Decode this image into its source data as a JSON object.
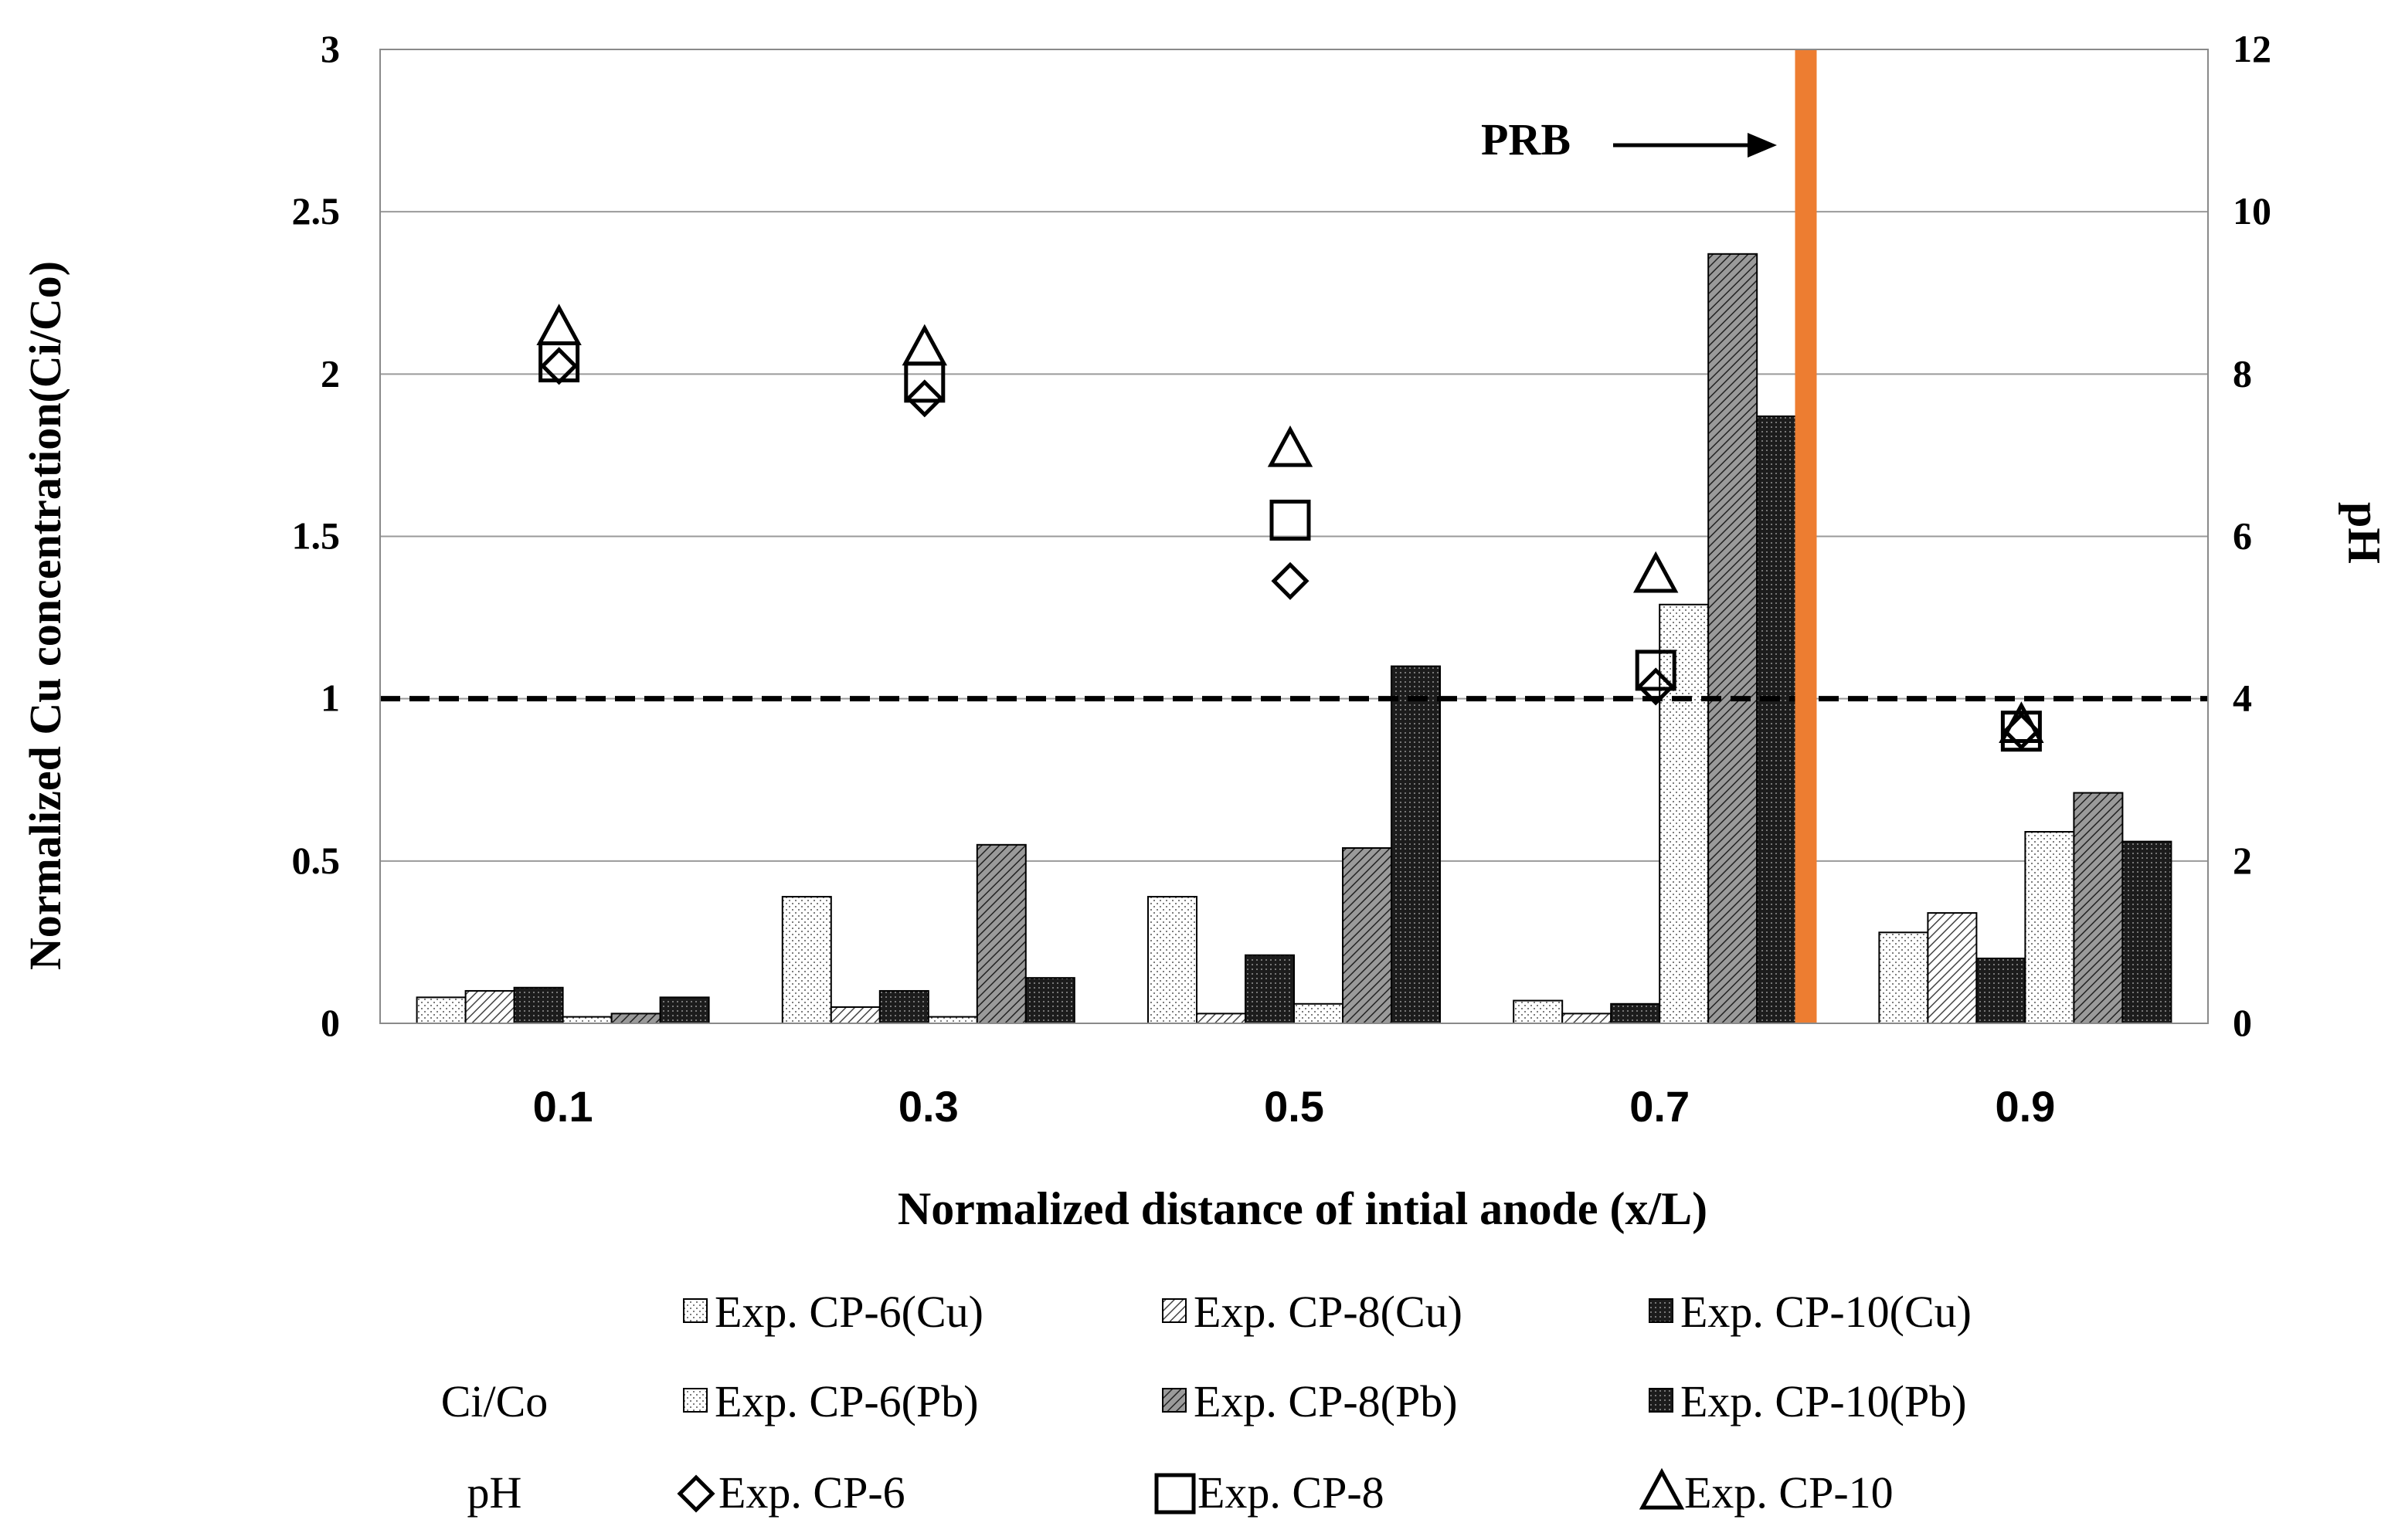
{
  "chart_data": {
    "type": "bar",
    "categories": [
      "0.1",
      "0.3",
      "0.5",
      "0.7",
      "0.9"
    ],
    "xlabel": "Normalized distance of intial anode (x/L)",
    "ylabel": "Normalized Cu concentration(Ci/Co)",
    "y2label": "pH",
    "ylim": [
      0,
      3
    ],
    "y2lim": [
      0,
      12
    ],
    "yticks": [
      "0",
      "0.5",
      "1",
      "1.5",
      "2",
      "2.5",
      "3"
    ],
    "y2ticks": [
      "0",
      "2",
      "4",
      "6",
      "8",
      "10",
      "12"
    ],
    "grid": true,
    "reference_line": {
      "y": 1,
      "style": "dashed"
    },
    "annotation": {
      "text": "PRB",
      "x": 0.78
    },
    "bar_series": [
      {
        "name": "Exp. CP-6(Cu)",
        "pattern": "dots-light",
        "values": [
          0.08,
          0.39,
          0.39,
          0.07,
          0.28
        ]
      },
      {
        "name": "Exp. CP-8(Cu)",
        "pattern": "hatch-light",
        "values": [
          0.1,
          0.05,
          0.03,
          0.03,
          0.34
        ]
      },
      {
        "name": "Exp. CP-10(Cu)",
        "pattern": "dark-grid",
        "values": [
          0.11,
          0.1,
          0.21,
          0.06,
          0.2
        ]
      },
      {
        "name": "Exp. CP-6(Pb)",
        "pattern": "dots-light",
        "values": [
          0.02,
          0.02,
          0.06,
          1.29,
          0.59
        ]
      },
      {
        "name": "Exp. CP-8(Pb)",
        "pattern": "hatch-dark",
        "values": [
          0.03,
          0.55,
          0.54,
          2.37,
          0.71
        ]
      },
      {
        "name": "Exp. CP-10(Pb)",
        "pattern": "dark-grid",
        "values": [
          0.08,
          0.14,
          1.1,
          1.87,
          0.56
        ]
      }
    ],
    "ph_series": [
      {
        "name": "Exp. CP-6",
        "marker": "diamond",
        "values": [
          8.1,
          7.7,
          5.45,
          4.15,
          3.6
        ]
      },
      {
        "name": "Exp. CP-8",
        "marker": "square",
        "values": [
          8.15,
          7.9,
          6.2,
          4.35,
          3.6
        ]
      },
      {
        "name": "Exp. CP-10",
        "marker": "triangle",
        "values": [
          8.55,
          8.3,
          7.05,
          5.5,
          3.65
        ]
      }
    ],
    "legend": {
      "row_labels": [
        "Ci/Co",
        "pH"
      ],
      "placement": "bottom"
    }
  }
}
